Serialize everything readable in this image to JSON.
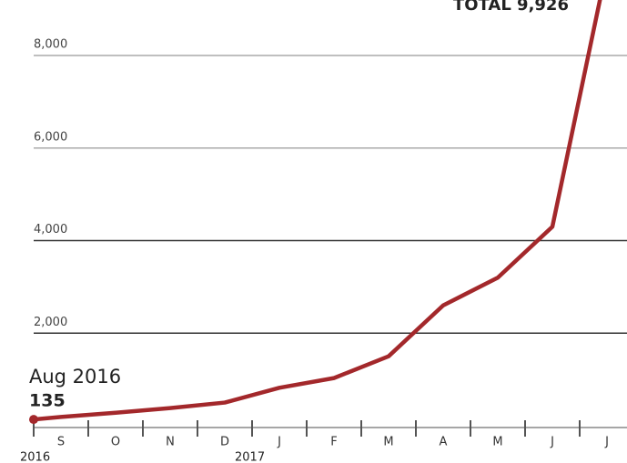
{
  "chart_data": {
    "type": "line",
    "annotation_date": "Aug 2016",
    "annotation_value": "135",
    "total_label": "TOTAL 9,926",
    "year_labels": [
      "2016",
      "2017"
    ],
    "categories": [
      null,
      "S",
      "O",
      "N",
      "D",
      "J",
      "F",
      "M",
      "A",
      "M",
      "J",
      "J"
    ],
    "series": [
      {
        "color": "#a3282b",
        "values": [
          135,
          190,
          280,
          380,
          500,
          820,
          1030,
          1500,
          2600,
          3200,
          4300,
          9926
        ]
      }
    ],
    "ylim": [
      0,
      9200
    ],
    "yticks": [
      {
        "value": 2000,
        "label": "2,000"
      },
      {
        "value": 4000,
        "label": "4,000"
      },
      {
        "value": 6000,
        "label": "6,000"
      },
      {
        "value": 8000,
        "label": "8,000"
      }
    ],
    "grid": true
  }
}
